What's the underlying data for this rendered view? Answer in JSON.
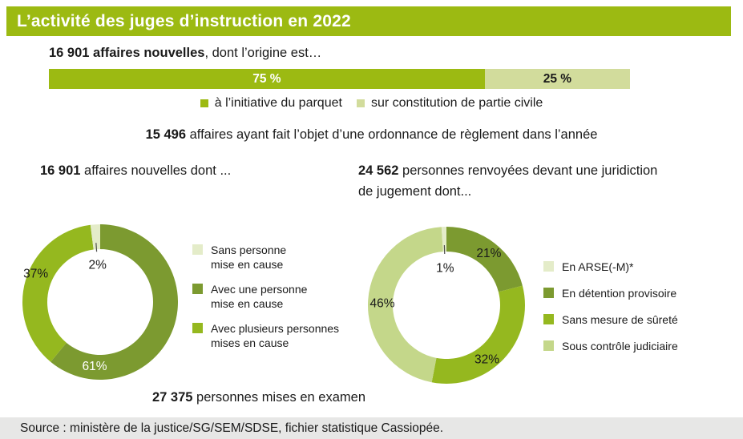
{
  "header": {
    "title": "L’activité des juges d’instruction en 2022"
  },
  "colors": {
    "brand": "#9cba12",
    "pale_bar": "#d2dc9c",
    "olive": "#7c9a30",
    "bright": "#95b81f",
    "light": "#c4d78a",
    "pale": "#e4ecc9",
    "footer_bg": "#e7e7e6",
    "text": "#1a1a1a",
    "callout_line": "#4d4d4d"
  },
  "intro": {
    "bold": "16 901  affaires nouvelles",
    "rest": ", dont l’origine est…"
  },
  "ordonnance": {
    "number": "15 496",
    "rest": " affaires ayant fait l’objet d’une ordonnance de règlement dans l’année"
  },
  "heading_left": {
    "number": "16 901",
    "rest": " affaires nouvelles dont ..."
  },
  "heading_right": {
    "number": "24 562",
    "rest_line1": " personnes renvoyées devant une juridiction",
    "line2": "de jugement dont..."
  },
  "examen": {
    "number": "27 375",
    "rest": " personnes mises en examen"
  },
  "footer": {
    "source": "Source : ministère de la justice/SG/SEM/SDSE, fichier statistique Cassiopée."
  },
  "chart_data": [
    {
      "id": "origin-bar",
      "type": "bar",
      "orientation": "horizontal-stacked",
      "title": "16 901 affaires nouvelles, dont l’origine est…",
      "total_label": "16 901 affaires nouvelles",
      "segments": [
        {
          "label": "à l’initiative du parquet",
          "value": 75,
          "display": "75 %",
          "color": "#9cba12",
          "text_color": "#ffffff"
        },
        {
          "label": "sur constitution de partie civile",
          "value": 25,
          "display": "25 %",
          "color": "#d2dc9c",
          "text_color": "#1a1a1a"
        }
      ],
      "legend_position": "bottom-center"
    },
    {
      "id": "donut-affaires",
      "type": "pie",
      "subtype": "donut",
      "title": "16 901 affaires nouvelles dont ...",
      "outer_radius": 97,
      "inner_radius": 66,
      "slices": [
        {
          "label": "Avec une personne mise en cause",
          "value": 61,
          "display": "61%",
          "color": "#7c9a30",
          "label_color": "#ffffff",
          "label_angle": 185,
          "label_radius": 80
        },
        {
          "label": "Avec plusieurs personnes mises en cause",
          "value": 37,
          "display": "37%",
          "color": "#95b81f",
          "label_color": "#1a1a1a",
          "label_angle": 294,
          "label_radius": 88
        },
        {
          "label": "Sans personne mise en cause",
          "value": 2,
          "display": "2%",
          "color": "#e4ecc9",
          "label_color": "#1a1a1a",
          "label_angle": 356,
          "label_radius": 47,
          "callout": true
        }
      ],
      "legend": [
        {
          "lines": [
            "Sans personne",
            "mise en cause"
          ],
          "color": "#e4ecc9"
        },
        {
          "lines": [
            "Avec une personne",
            "mise en cause"
          ],
          "color": "#7c9a30"
        },
        {
          "lines": [
            "Avec plusieurs personnes",
            "mises en cause"
          ],
          "color": "#95b81f"
        }
      ],
      "legend_position": "right"
    },
    {
      "id": "donut-personnes",
      "type": "pie",
      "subtype": "donut",
      "title": "24 562 personnes renvoyées devant une juridiction de jugement dont...",
      "outer_radius": 98,
      "inner_radius": 67,
      "slices": [
        {
          "label": "En détention provisoire",
          "value": 21,
          "display": "21%",
          "color": "#7c9a30",
          "label_color": "#1a1a1a",
          "label_angle": 39,
          "label_radius": 84
        },
        {
          "label": "Sans mesure de sûreté",
          "value": 32,
          "display": "32%",
          "color": "#95b81f",
          "label_color": "#1a1a1a",
          "label_angle": 143,
          "label_radius": 84
        },
        {
          "label": "Sous contrôle judiciaire",
          "value": 46,
          "display": "46%",
          "color": "#c4d78a",
          "label_color": "#1a1a1a",
          "label_angle": 272,
          "label_radius": 80
        },
        {
          "label": "En ARSE(-M)*",
          "value": 1,
          "display": "1%",
          "color": "#e4ecc9",
          "label_color": "#1a1a1a",
          "label_angle": 358,
          "label_radius": 47,
          "callout": true
        }
      ],
      "legend": [
        {
          "lines": [
            "En ARSE(-M)*"
          ],
          "color": "#e4ecc9"
        },
        {
          "lines": [
            "En détention provisoire"
          ],
          "color": "#7c9a30"
        },
        {
          "lines": [
            "Sans mesure de sûreté"
          ],
          "color": "#95b81f"
        },
        {
          "lines": [
            "Sous contrôle judiciaire"
          ],
          "color": "#c4d78a"
        }
      ],
      "legend_position": "right"
    }
  ]
}
